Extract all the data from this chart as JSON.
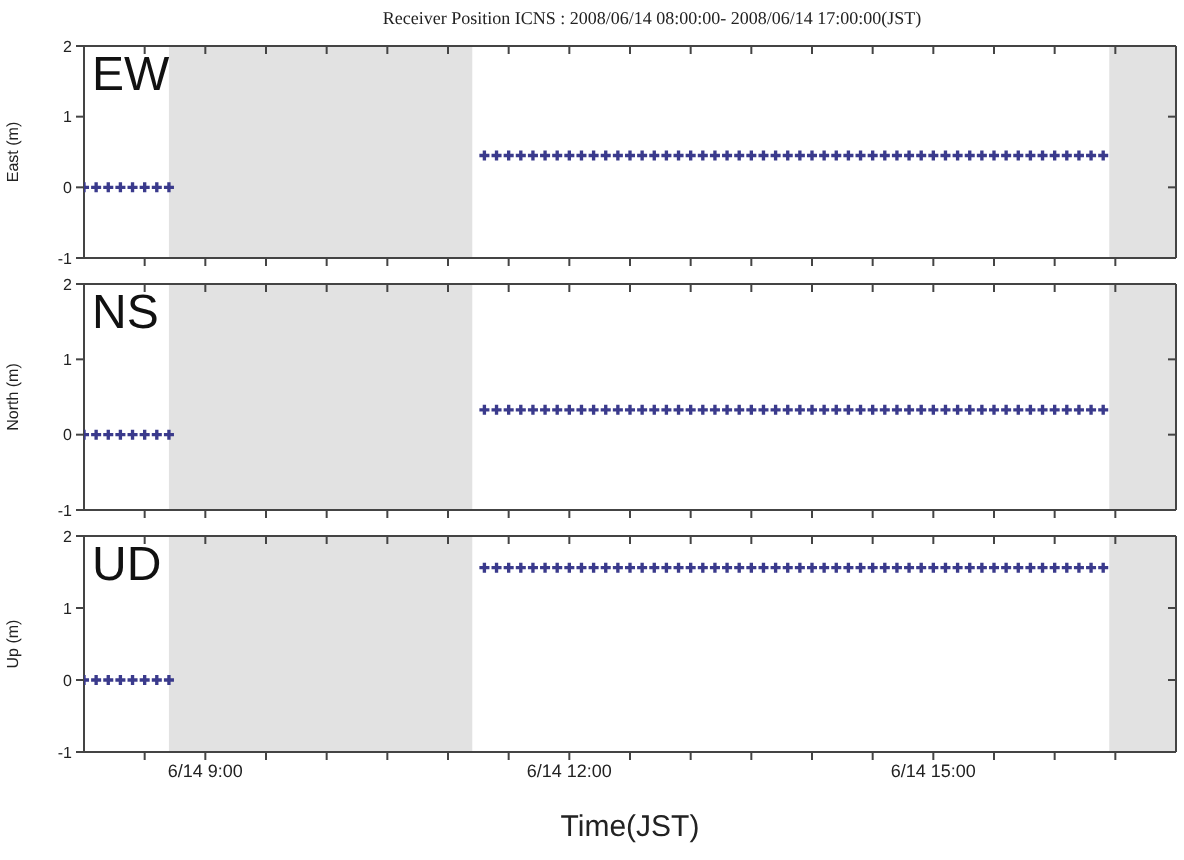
{
  "chart_data": [
    {
      "type": "scatter",
      "title": "Receiver Position ICNS : 2008/06/14 08:00:00- 2008/06/14 17:00:00(JST)",
      "ylabel": "East (m)",
      "annotations": [
        "EW"
      ],
      "tick_labels": "y",
      "legend": false,
      "marker": "cross",
      "grid": false,
      "x": [
        "2008-06-14T08:00",
        "2008-06-14T08:06",
        "2008-06-14T08:12",
        "2008-06-14T08:18",
        "2008-06-14T08:24",
        "2008-06-14T08:30",
        "2008-06-14T08:36",
        "2008-06-14T08:42",
        "2008-06-14T11:18",
        "2008-06-14T11:24",
        "2008-06-14T11:30",
        "2008-06-14T11:36",
        "2008-06-14T11:42",
        "2008-06-14T11:48",
        "2008-06-14T11:54",
        "2008-06-14T12:00",
        "2008-06-14T12:06",
        "2008-06-14T12:12",
        "2008-06-14T12:18",
        "2008-06-14T12:24",
        "2008-06-14T12:30",
        "2008-06-14T12:36",
        "2008-06-14T12:42",
        "2008-06-14T12:48",
        "2008-06-14T12:54",
        "2008-06-14T13:00",
        "2008-06-14T13:06",
        "2008-06-14T13:12",
        "2008-06-14T13:18",
        "2008-06-14T13:24",
        "2008-06-14T13:30",
        "2008-06-14T13:36",
        "2008-06-14T13:42",
        "2008-06-14T13:48",
        "2008-06-14T13:54",
        "2008-06-14T14:00",
        "2008-06-14T14:06",
        "2008-06-14T14:12",
        "2008-06-14T14:18",
        "2008-06-14T14:24",
        "2008-06-14T14:30",
        "2008-06-14T14:36",
        "2008-06-14T14:42",
        "2008-06-14T14:48",
        "2008-06-14T14:54",
        "2008-06-14T15:00",
        "2008-06-14T15:06",
        "2008-06-14T15:12",
        "2008-06-14T15:18",
        "2008-06-14T15:24",
        "2008-06-14T15:30",
        "2008-06-14T15:36",
        "2008-06-14T15:42",
        "2008-06-14T15:48",
        "2008-06-14T15:54",
        "2008-06-14T16:00",
        "2008-06-14T16:06",
        "2008-06-14T16:12",
        "2008-06-14T16:18",
        "2008-06-14T16:24"
      ],
      "series": [
        {
          "color": "#3a3a8c",
          "values": [
            0,
            0,
            0,
            0,
            0,
            0,
            0,
            0,
            0.45,
            0.45,
            0.45,
            0.45,
            0.45,
            0.45,
            0.45,
            0.45,
            0.45,
            0.45,
            0.45,
            0.45,
            0.45,
            0.45,
            0.45,
            0.45,
            0.45,
            0.45,
            0.45,
            0.45,
            0.45,
            0.45,
            0.45,
            0.45,
            0.45,
            0.45,
            0.45,
            0.45,
            0.45,
            0.45,
            0.45,
            0.45,
            0.45,
            0.45,
            0.45,
            0.45,
            0.45,
            0.45,
            0.45,
            0.45,
            0.45,
            0.45,
            0.45,
            0.45,
            0.45,
            0.45,
            0.45,
            0.45,
            0.45,
            0.45,
            0.45,
            0.45
          ]
        }
      ],
      "xlim": [
        "2008-06-14T08:00",
        "2008-06-14T17:00"
      ],
      "xticks": [
        {
          "value": "2008-06-14T08:30",
          "label": null
        },
        {
          "value": "2008-06-14T09:00",
          "label": null
        },
        {
          "value": "2008-06-14T09:30",
          "label": null
        },
        {
          "value": "2008-06-14T10:00",
          "label": null
        },
        {
          "value": "2008-06-14T10:30",
          "label": null
        },
        {
          "value": "2008-06-14T11:00",
          "label": null
        },
        {
          "value": "2008-06-14T11:30",
          "label": null
        },
        {
          "value": "2008-06-14T12:00",
          "label": null
        },
        {
          "value": "2008-06-14T12:30",
          "label": null
        },
        {
          "value": "2008-06-14T13:00",
          "label": null
        },
        {
          "value": "2008-06-14T13:30",
          "label": null
        },
        {
          "value": "2008-06-14T14:00",
          "label": null
        },
        {
          "value": "2008-06-14T14:30",
          "label": null
        },
        {
          "value": "2008-06-14T15:00",
          "label": null
        },
        {
          "value": "2008-06-14T15:30",
          "label": null
        },
        {
          "value": "2008-06-14T16:00",
          "label": null
        },
        {
          "value": "2008-06-14T16:30",
          "label": null
        }
      ],
      "ylim": [
        -1,
        2
      ],
      "yticks": [
        -1,
        0,
        1,
        2
      ],
      "bands": [
        {
          "axis": "x",
          "from": "2008-06-14T08:42",
          "to": "2008-06-14T11:12",
          "color": "#e2e2e2"
        },
        {
          "axis": "x",
          "from": "2008-06-14T16:27",
          "to": "2008-06-14T17:00",
          "color": "#e2e2e2"
        }
      ]
    },
    {
      "type": "scatter",
      "ylabel": "North (m)",
      "annotations": [
        "NS"
      ],
      "tick_labels": "y",
      "legend": false,
      "marker": "cross",
      "grid": false,
      "x": [
        "2008-06-14T08:00",
        "2008-06-14T08:06",
        "2008-06-14T08:12",
        "2008-06-14T08:18",
        "2008-06-14T08:24",
        "2008-06-14T08:30",
        "2008-06-14T08:36",
        "2008-06-14T08:42",
        "2008-06-14T11:18",
        "2008-06-14T11:24",
        "2008-06-14T11:30",
        "2008-06-14T11:36",
        "2008-06-14T11:42",
        "2008-06-14T11:48",
        "2008-06-14T11:54",
        "2008-06-14T12:00",
        "2008-06-14T12:06",
        "2008-06-14T12:12",
        "2008-06-14T12:18",
        "2008-06-14T12:24",
        "2008-06-14T12:30",
        "2008-06-14T12:36",
        "2008-06-14T12:42",
        "2008-06-14T12:48",
        "2008-06-14T12:54",
        "2008-06-14T13:00",
        "2008-06-14T13:06",
        "2008-06-14T13:12",
        "2008-06-14T13:18",
        "2008-06-14T13:24",
        "2008-06-14T13:30",
        "2008-06-14T13:36",
        "2008-06-14T13:42",
        "2008-06-14T13:48",
        "2008-06-14T13:54",
        "2008-06-14T14:00",
        "2008-06-14T14:06",
        "2008-06-14T14:12",
        "2008-06-14T14:18",
        "2008-06-14T14:24",
        "2008-06-14T14:30",
        "2008-06-14T14:36",
        "2008-06-14T14:42",
        "2008-06-14T14:48",
        "2008-06-14T14:54",
        "2008-06-14T15:00",
        "2008-06-14T15:06",
        "2008-06-14T15:12",
        "2008-06-14T15:18",
        "2008-06-14T15:24",
        "2008-06-14T15:30",
        "2008-06-14T15:36",
        "2008-06-14T15:42",
        "2008-06-14T15:48",
        "2008-06-14T15:54",
        "2008-06-14T16:00",
        "2008-06-14T16:06",
        "2008-06-14T16:12",
        "2008-06-14T16:18",
        "2008-06-14T16:24"
      ],
      "series": [
        {
          "color": "#3a3a8c",
          "values": [
            0,
            0,
            0,
            0,
            0,
            0,
            0,
            0,
            0.33,
            0.33,
            0.33,
            0.33,
            0.33,
            0.33,
            0.33,
            0.33,
            0.33,
            0.33,
            0.33,
            0.33,
            0.33,
            0.33,
            0.33,
            0.33,
            0.33,
            0.33,
            0.33,
            0.33,
            0.33,
            0.33,
            0.33,
            0.33,
            0.33,
            0.33,
            0.33,
            0.33,
            0.33,
            0.33,
            0.33,
            0.33,
            0.33,
            0.33,
            0.33,
            0.33,
            0.33,
            0.33,
            0.33,
            0.33,
            0.33,
            0.33,
            0.33,
            0.33,
            0.33,
            0.33,
            0.33,
            0.33,
            0.33,
            0.33,
            0.33,
            0.33
          ]
        }
      ],
      "xlim": [
        "2008-06-14T08:00",
        "2008-06-14T17:00"
      ],
      "xticks": [
        {
          "value": "2008-06-14T08:30",
          "label": null
        },
        {
          "value": "2008-06-14T09:00",
          "label": null
        },
        {
          "value": "2008-06-14T09:30",
          "label": null
        },
        {
          "value": "2008-06-14T10:00",
          "label": null
        },
        {
          "value": "2008-06-14T10:30",
          "label": null
        },
        {
          "value": "2008-06-14T11:00",
          "label": null
        },
        {
          "value": "2008-06-14T11:30",
          "label": null
        },
        {
          "value": "2008-06-14T12:00",
          "label": null
        },
        {
          "value": "2008-06-14T12:30",
          "label": null
        },
        {
          "value": "2008-06-14T13:00",
          "label": null
        },
        {
          "value": "2008-06-14T13:30",
          "label": null
        },
        {
          "value": "2008-06-14T14:00",
          "label": null
        },
        {
          "value": "2008-06-14T14:30",
          "label": null
        },
        {
          "value": "2008-06-14T15:00",
          "label": null
        },
        {
          "value": "2008-06-14T15:30",
          "label": null
        },
        {
          "value": "2008-06-14T16:00",
          "label": null
        },
        {
          "value": "2008-06-14T16:30",
          "label": null
        }
      ],
      "ylim": [
        -1,
        2
      ],
      "yticks": [
        -1,
        0,
        1,
        2
      ],
      "bands": [
        {
          "axis": "x",
          "from": "2008-06-14T08:42",
          "to": "2008-06-14T11:12",
          "color": "#e2e2e2"
        },
        {
          "axis": "x",
          "from": "2008-06-14T16:27",
          "to": "2008-06-14T17:00",
          "color": "#e2e2e2"
        }
      ]
    },
    {
      "type": "scatter",
      "ylabel": "Up (m)",
      "xlabel": "Time(JST)",
      "annotations": [
        "UD"
      ],
      "legend": false,
      "marker": "cross",
      "grid": false,
      "x": [
        "2008-06-14T08:00",
        "2008-06-14T08:06",
        "2008-06-14T08:12",
        "2008-06-14T08:18",
        "2008-06-14T08:24",
        "2008-06-14T08:30",
        "2008-06-14T08:36",
        "2008-06-14T08:42",
        "2008-06-14T11:18",
        "2008-06-14T11:24",
        "2008-06-14T11:30",
        "2008-06-14T11:36",
        "2008-06-14T11:42",
        "2008-06-14T11:48",
        "2008-06-14T11:54",
        "2008-06-14T12:00",
        "2008-06-14T12:06",
        "2008-06-14T12:12",
        "2008-06-14T12:18",
        "2008-06-14T12:24",
        "2008-06-14T12:30",
        "2008-06-14T12:36",
        "2008-06-14T12:42",
        "2008-06-14T12:48",
        "2008-06-14T12:54",
        "2008-06-14T13:00",
        "2008-06-14T13:06",
        "2008-06-14T13:12",
        "2008-06-14T13:18",
        "2008-06-14T13:24",
        "2008-06-14T13:30",
        "2008-06-14T13:36",
        "2008-06-14T13:42",
        "2008-06-14T13:48",
        "2008-06-14T13:54",
        "2008-06-14T14:00",
        "2008-06-14T14:06",
        "2008-06-14T14:12",
        "2008-06-14T14:18",
        "2008-06-14T14:24",
        "2008-06-14T14:30",
        "2008-06-14T14:36",
        "2008-06-14T14:42",
        "2008-06-14T14:48",
        "2008-06-14T14:54",
        "2008-06-14T15:00",
        "2008-06-14T15:06",
        "2008-06-14T15:12",
        "2008-06-14T15:18",
        "2008-06-14T15:24",
        "2008-06-14T15:30",
        "2008-06-14T15:36",
        "2008-06-14T15:42",
        "2008-06-14T15:48",
        "2008-06-14T15:54",
        "2008-06-14T16:00",
        "2008-06-14T16:06",
        "2008-06-14T16:12",
        "2008-06-14T16:18",
        "2008-06-14T16:24"
      ],
      "series": [
        {
          "color": "#3a3a8c",
          "values": [
            0,
            0,
            0,
            0,
            0,
            0,
            0,
            0,
            1.56,
            1.56,
            1.56,
            1.56,
            1.56,
            1.56,
            1.56,
            1.56,
            1.56,
            1.56,
            1.56,
            1.56,
            1.56,
            1.56,
            1.56,
            1.56,
            1.56,
            1.56,
            1.56,
            1.56,
            1.56,
            1.56,
            1.56,
            1.56,
            1.56,
            1.56,
            1.56,
            1.56,
            1.56,
            1.56,
            1.56,
            1.56,
            1.56,
            1.56,
            1.56,
            1.56,
            1.56,
            1.56,
            1.56,
            1.56,
            1.56,
            1.56,
            1.56,
            1.56,
            1.56,
            1.56,
            1.56,
            1.56,
            1.56,
            1.56,
            1.56,
            1.56
          ]
        }
      ],
      "xlim": [
        "2008-06-14T08:00",
        "2008-06-14T17:00"
      ],
      "xticks": [
        {
          "value": "2008-06-14T08:30",
          "label": null
        },
        {
          "value": "2008-06-14T09:00",
          "label": "6/14 9:00"
        },
        {
          "value": "2008-06-14T09:30",
          "label": null
        },
        {
          "value": "2008-06-14T10:00",
          "label": null
        },
        {
          "value": "2008-06-14T10:30",
          "label": null
        },
        {
          "value": "2008-06-14T11:00",
          "label": null
        },
        {
          "value": "2008-06-14T11:30",
          "label": null
        },
        {
          "value": "2008-06-14T12:00",
          "label": "6/14 12:00"
        },
        {
          "value": "2008-06-14T12:30",
          "label": null
        },
        {
          "value": "2008-06-14T13:00",
          "label": null
        },
        {
          "value": "2008-06-14T13:30",
          "label": null
        },
        {
          "value": "2008-06-14T14:00",
          "label": null
        },
        {
          "value": "2008-06-14T14:30",
          "label": null
        },
        {
          "value": "2008-06-14T15:00",
          "label": "6/14 15:00"
        },
        {
          "value": "2008-06-14T15:30",
          "label": null
        },
        {
          "value": "2008-06-14T16:00",
          "label": null
        },
        {
          "value": "2008-06-14T16:30",
          "label": null
        }
      ],
      "ylim": [
        -1,
        2
      ],
      "yticks": [
        -1,
        0,
        1,
        2
      ],
      "bands": [
        {
          "axis": "x",
          "from": "2008-06-14T08:42",
          "to": "2008-06-14T11:12",
          "color": "#e2e2e2"
        },
        {
          "axis": "x",
          "from": "2008-06-14T16:27",
          "to": "2008-06-14T17:00",
          "color": "#e2e2e2"
        }
      ]
    }
  ]
}
